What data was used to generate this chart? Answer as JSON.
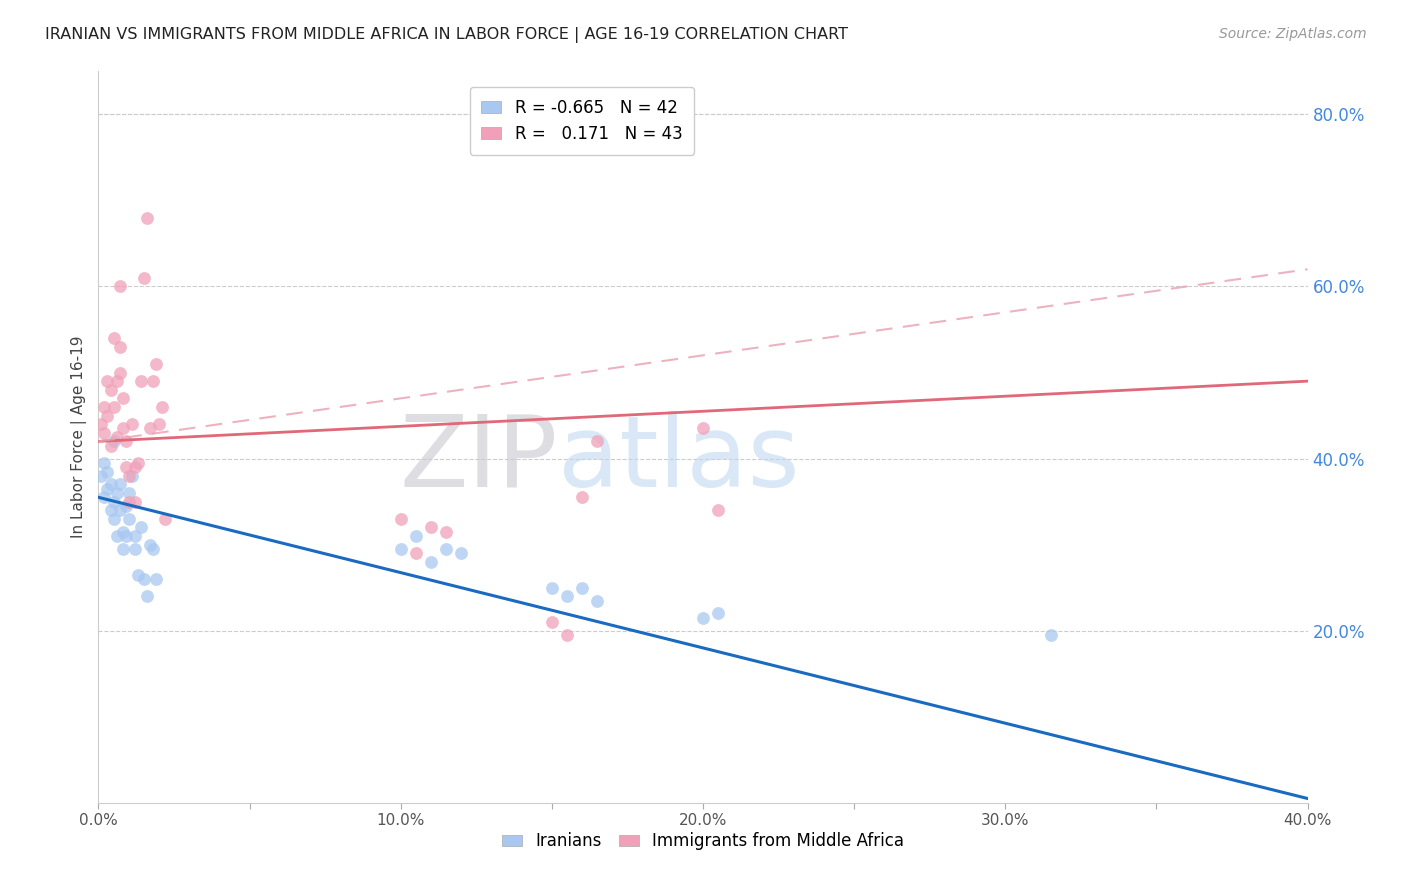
{
  "title": "IRANIAN VS IMMIGRANTS FROM MIDDLE AFRICA IN LABOR FORCE | AGE 16-19 CORRELATION CHART",
  "source": "Source: ZipAtlas.com",
  "ylabel": "In Labor Force | Age 16-19",
  "watermark_zip": "ZIP",
  "watermark_atlas": "atlas",
  "xticklabels": [
    "0.0%",
    "",
    "10.0%",
    "",
    "20.0%",
    "",
    "30.0%",
    "",
    "40.0%"
  ],
  "yticklabels_right": [
    "20.0%",
    "40.0%",
    "60.0%",
    "80.0%"
  ],
  "xlim": [
    0,
    0.4
  ],
  "ylim": [
    0,
    0.85
  ],
  "blue_line_color": "#1a6bc0",
  "pink_solid_line_color": "#e06878",
  "pink_dashed_line_color": "#e8a0b0",
  "grid_color": "#cccccc",
  "background_color": "#ffffff",
  "title_color": "#222222",
  "source_color": "#999999",
  "right_tick_color": "#4488dd",
  "blue_scatter_color": "#a8c8f0",
  "pink_scatter_color": "#f0a0b8",
  "scatter_alpha": 0.75,
  "scatter_size": 85,
  "blue_points_x": [
    0.001,
    0.002,
    0.002,
    0.003,
    0.003,
    0.004,
    0.004,
    0.005,
    0.005,
    0.005,
    0.006,
    0.006,
    0.007,
    0.007,
    0.008,
    0.008,
    0.009,
    0.009,
    0.01,
    0.01,
    0.011,
    0.012,
    0.012,
    0.013,
    0.014,
    0.015,
    0.016,
    0.017,
    0.018,
    0.019,
    0.1,
    0.105,
    0.11,
    0.115,
    0.12,
    0.15,
    0.155,
    0.16,
    0.165,
    0.2,
    0.205,
    0.315
  ],
  "blue_points_y": [
    0.38,
    0.355,
    0.395,
    0.365,
    0.385,
    0.34,
    0.37,
    0.35,
    0.33,
    0.42,
    0.36,
    0.31,
    0.34,
    0.37,
    0.315,
    0.295,
    0.345,
    0.31,
    0.33,
    0.36,
    0.38,
    0.31,
    0.295,
    0.265,
    0.32,
    0.26,
    0.24,
    0.3,
    0.295,
    0.26,
    0.295,
    0.31,
    0.28,
    0.295,
    0.29,
    0.25,
    0.24,
    0.25,
    0.235,
    0.215,
    0.22,
    0.195
  ],
  "pink_points_x": [
    0.001,
    0.002,
    0.002,
    0.003,
    0.003,
    0.004,
    0.004,
    0.005,
    0.005,
    0.006,
    0.006,
    0.007,
    0.007,
    0.007,
    0.008,
    0.008,
    0.009,
    0.009,
    0.01,
    0.01,
    0.011,
    0.012,
    0.012,
    0.013,
    0.014,
    0.015,
    0.016,
    0.017,
    0.018,
    0.019,
    0.02,
    0.021,
    0.022,
    0.1,
    0.105,
    0.11,
    0.115,
    0.15,
    0.155,
    0.16,
    0.165,
    0.2,
    0.205
  ],
  "pink_points_y": [
    0.44,
    0.43,
    0.46,
    0.45,
    0.49,
    0.48,
    0.415,
    0.46,
    0.54,
    0.49,
    0.425,
    0.5,
    0.53,
    0.6,
    0.435,
    0.47,
    0.39,
    0.42,
    0.35,
    0.38,
    0.44,
    0.39,
    0.35,
    0.395,
    0.49,
    0.61,
    0.68,
    0.435,
    0.49,
    0.51,
    0.44,
    0.46,
    0.33,
    0.33,
    0.29,
    0.32,
    0.315,
    0.21,
    0.195,
    0.355,
    0.42,
    0.435,
    0.34
  ],
  "blue_line_x": [
    0.0,
    0.4
  ],
  "blue_line_y": [
    0.355,
    0.005
  ],
  "pink_solid_line_x": [
    0.0,
    0.4
  ],
  "pink_solid_line_y": [
    0.42,
    0.49
  ],
  "pink_dashed_line_x": [
    0.0,
    0.4
  ],
  "pink_dashed_line_y": [
    0.42,
    0.62
  ]
}
